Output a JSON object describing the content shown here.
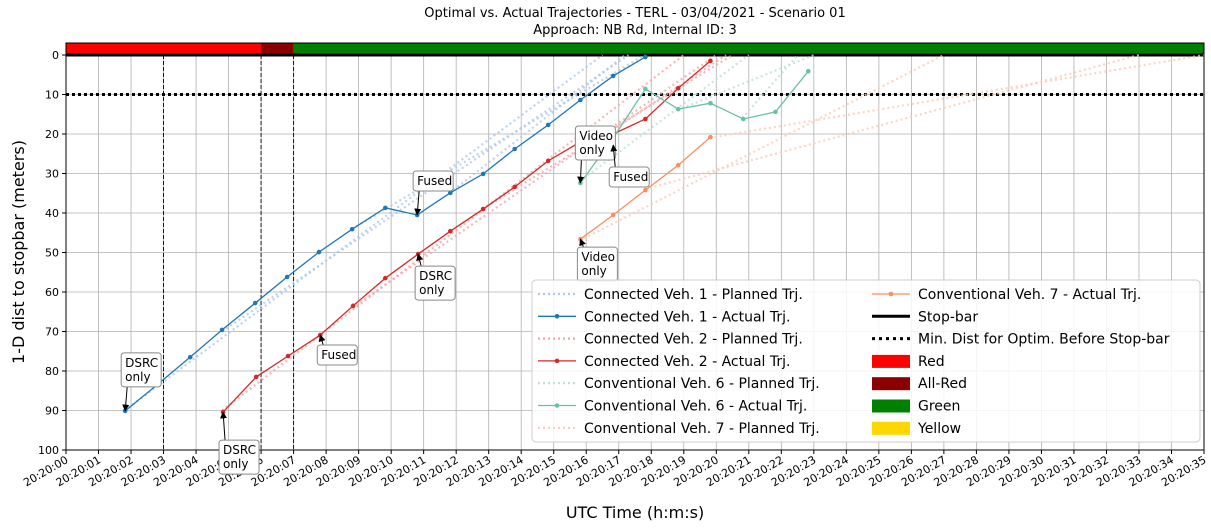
{
  "chart_data": {
    "type": "line",
    "title": "Optimal vs. Actual Trajectories - TERL - 03/04/2021 - Scenario 01",
    "subtitle": "Approach: NB Rd, Internal ID: 3",
    "x_label": "UTC Time (h:m:s)",
    "y_label": "1-D dist to stopbar (meters)",
    "xlim": [
      0,
      35
    ],
    "ylim": [
      0,
      100
    ],
    "y_inverted": true,
    "grid": true,
    "xticks": [
      {
        "value": 0,
        "label": "20:20:00"
      },
      {
        "value": 1,
        "label": "20:20:01"
      },
      {
        "value": 2,
        "label": "20:20:02"
      },
      {
        "value": 3,
        "label": "20:20:03"
      },
      {
        "value": 4,
        "label": "20:20:04"
      },
      {
        "value": 5,
        "label": "20:20:05"
      },
      {
        "value": 6,
        "label": "20:20:06"
      },
      {
        "value": 7,
        "label": "20:20:07"
      },
      {
        "value": 8,
        "label": "20:20:08"
      },
      {
        "value": 9,
        "label": "20:20:09"
      },
      {
        "value": 10,
        "label": "20:20:10"
      },
      {
        "value": 11,
        "label": "20:20:11"
      },
      {
        "value": 12,
        "label": "20:20:12"
      },
      {
        "value": 13,
        "label": "20:20:13"
      },
      {
        "value": 14,
        "label": "20:20:14"
      },
      {
        "value": 15,
        "label": "20:20:15"
      },
      {
        "value": 16,
        "label": "20:20:16"
      },
      {
        "value": 17,
        "label": "20:20:17"
      },
      {
        "value": 18,
        "label": "20:20:18"
      },
      {
        "value": 19,
        "label": "20:20:19"
      },
      {
        "value": 20,
        "label": "20:20:20"
      },
      {
        "value": 21,
        "label": "20:20:21"
      },
      {
        "value": 22,
        "label": "20:20:22"
      },
      {
        "value": 23,
        "label": "20:20:23"
      },
      {
        "value": 24,
        "label": "20:20:24"
      },
      {
        "value": 25,
        "label": "20:20:25"
      },
      {
        "value": 26,
        "label": "20:20:26"
      },
      {
        "value": 27,
        "label": "20:20:27"
      },
      {
        "value": 28,
        "label": "20:20:28"
      },
      {
        "value": 29,
        "label": "20:20:29"
      },
      {
        "value": 30,
        "label": "20:20:30"
      },
      {
        "value": 31,
        "label": "20:20:31"
      },
      {
        "value": 32,
        "label": "20:20:32"
      },
      {
        "value": 33,
        "label": "20:20:33"
      },
      {
        "value": 34,
        "label": "20:20:34"
      },
      {
        "value": 35,
        "label": "20:20:35"
      }
    ],
    "yticks": [
      0,
      10,
      20,
      30,
      40,
      50,
      60,
      70,
      80,
      90,
      100
    ],
    "vlines": [
      3,
      6,
      7
    ],
    "series": [
      {
        "name": "Connected Veh. 1 - Planned Trj.",
        "color": "#aec7e8",
        "style": "dotted",
        "trajectories": [
          {
            "x": [
              1.8,
              16.5
            ],
            "values": [
              90,
              0
            ]
          },
          {
            "x": [
              4.8,
              17.3
            ],
            "values": [
              70,
              0
            ]
          },
          {
            "x": [
              8.8,
              17.8
            ],
            "values": [
              44,
              0
            ]
          },
          {
            "x": [
              11.8,
              17.2
            ],
            "values": [
              35,
              0
            ]
          }
        ]
      },
      {
        "name": "Connected Veh. 1 - Actual Trj.",
        "color": "#1f77b4",
        "style": "solid",
        "x": [
          1.82,
          2.8,
          3.82,
          4.8,
          5.82,
          6.8,
          7.78,
          8.8,
          9.82,
          10.8,
          11.82,
          12.83,
          13.8,
          14.83,
          15.82,
          16.83,
          17.82
        ],
        "values": [
          90.1,
          83.5,
          76.5,
          69.6,
          62.8,
          56.2,
          49.9,
          44.1,
          38.7,
          40.5,
          34.9,
          30.1,
          23.8,
          17.7,
          11.4,
          5.3,
          0.5
        ]
      },
      {
        "name": "Connected Veh. 2 - Planned Trj.",
        "color": "#f4a5a5",
        "style": "dotted",
        "trajectories": [
          {
            "x": [
              4.8,
              19
            ],
            "values": [
              90,
              0
            ]
          },
          {
            "x": [
              8.8,
              20
            ],
            "values": [
              64,
              0
            ]
          },
          {
            "x": [
              12.8,
              20.5
            ],
            "values": [
              39,
              0
            ]
          },
          {
            "x": [
              16.8,
              20.3
            ],
            "values": [
              19,
              0
            ]
          }
        ]
      },
      {
        "name": "Connected Veh. 2 - Actual Trj.",
        "color": "#d62728",
        "style": "solid",
        "x": [
          4.83,
          5.85,
          6.83,
          7.82,
          8.83,
          9.82,
          10.83,
          11.82,
          12.83,
          13.8,
          14.83,
          15.82,
          16.83,
          17.82,
          18.83,
          19.82
        ],
        "values": [
          90.4,
          81.5,
          76.2,
          70.9,
          63.5,
          56.5,
          50.4,
          44.6,
          39,
          33.4,
          26.8,
          22,
          20,
          16.2,
          8.4,
          1.5
        ]
      },
      {
        "name": "Conventional Veh. 6 - Planned Trj.",
        "color": "#b8e0d3",
        "style": "dotted",
        "trajectories": [
          {
            "x": [
              15.8,
              21
            ],
            "values": [
              32,
              0
            ]
          },
          {
            "x": [
              18.8,
              23
            ],
            "values": [
              14,
              0
            ]
          },
          {
            "x": [
              20.8,
              22.5
            ],
            "values": [
              16,
              0
            ]
          }
        ]
      },
      {
        "name": "Conventional Veh. 6 - Actual Trj.",
        "color": "#66c2a5",
        "style": "solid",
        "x": [
          15.82,
          16.83,
          17.82,
          18.83,
          19.82,
          20.83,
          21.82,
          22.83
        ],
        "values": [
          32.4,
          21,
          8.6,
          13.7,
          12.2,
          16.2,
          14.4,
          4.1
        ]
      },
      {
        "name": "Conventional Veh. 7 - Planned Trj.",
        "color": "#fbc9b5",
        "style": "dotted",
        "trajectories": [
          {
            "x": [
              15.8,
              27
            ],
            "values": [
              47,
              0
            ]
          },
          {
            "x": [
              17.8,
              33
            ],
            "values": [
              34,
              0
            ]
          },
          {
            "x": [
              19.8,
              35
            ],
            "values": [
              21,
              0
            ]
          }
        ]
      },
      {
        "name": "Conventional Veh. 7 - Actual Trj.",
        "color": "#fc8d62",
        "style": "solid",
        "x": [
          15.82,
          16.83,
          17.82,
          18.83,
          19.82
        ],
        "values": [
          46.6,
          40.5,
          34.2,
          27.9,
          20.8
        ]
      }
    ],
    "stop_bar": {
      "name": "Stop-bar",
      "value": 0,
      "color": "#000000"
    },
    "min_dist": {
      "name": "Min. Dist for Optim. Before Stop-bar",
      "value": 10,
      "color": "#000000"
    },
    "signal": [
      {
        "name": "Red",
        "color": "#ff0000",
        "start": 0,
        "end": 6
      },
      {
        "name": "All-Red",
        "color": "#8b0000",
        "start": 6,
        "end": 7
      },
      {
        "name": "Green",
        "color": "#008000",
        "start": 7,
        "end": 35
      },
      {
        "name": "Yellow",
        "color": "#ffd700"
      }
    ],
    "annotations": [
      {
        "lines": [
          "DSRC",
          "only"
        ],
        "x": 1.82,
        "y": 90.1
      },
      {
        "lines": [
          "DSRC",
          "only"
        ],
        "x": 4.83,
        "y": 90.4
      },
      {
        "lines": [
          "Fused"
        ],
        "x": 7.82,
        "y": 70.9
      },
      {
        "lines": [
          "Fused"
        ],
        "x": 10.8,
        "y": 40.5
      },
      {
        "lines": [
          "DSRC",
          "only"
        ],
        "x": 10.83,
        "y": 50.4
      },
      {
        "lines": [
          "Video",
          "only"
        ],
        "x": 15.82,
        "y": 32.4
      },
      {
        "lines": [
          "Fused"
        ],
        "x": 16.83,
        "y": 22.8
      },
      {
        "lines": [
          "Video",
          "only"
        ],
        "x": 15.82,
        "y": 46.6
      }
    ],
    "legend": "lower right"
  }
}
